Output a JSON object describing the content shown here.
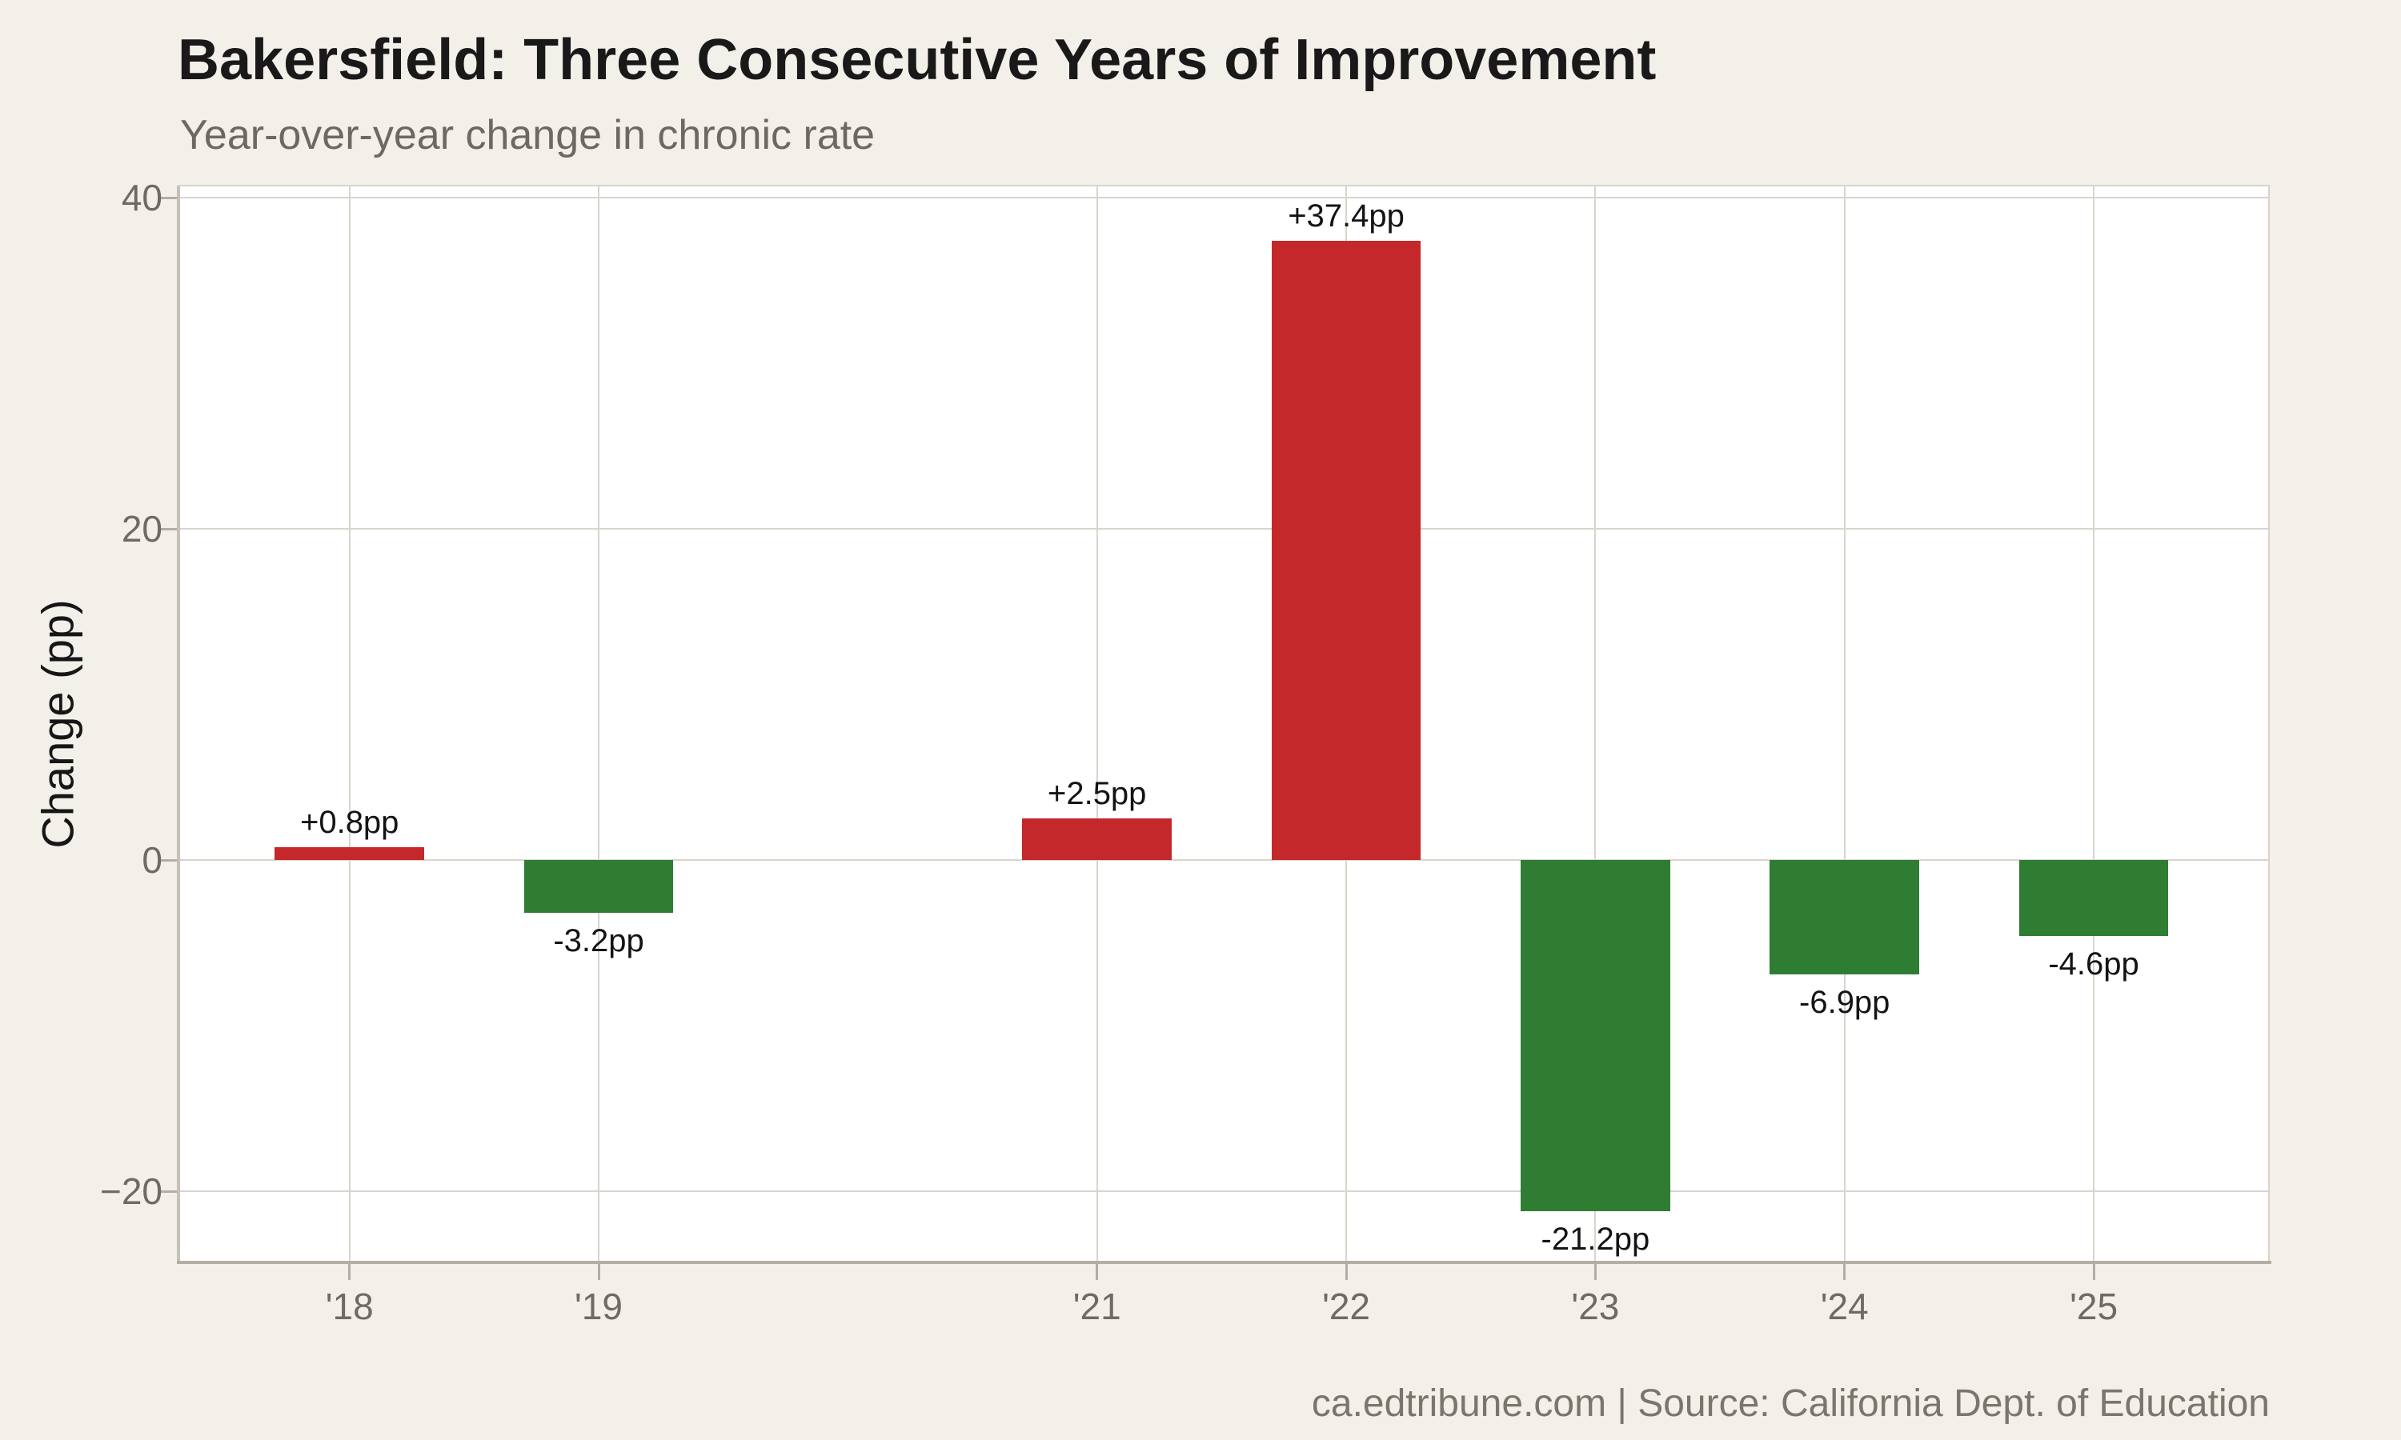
{
  "header": {
    "title": "Bakersfield: Three Consecutive Years of Improvement",
    "subtitle": "Year-over-year change in chronic rate"
  },
  "footer": {
    "attribution": "ca.edtribune.com | Source: California Dept. of Education"
  },
  "chart_data": {
    "type": "bar",
    "title": "Bakersfield: Three Consecutive Years of Improvement",
    "subtitle": "Year-over-year change in chronic rate",
    "xlabel": "",
    "ylabel": "Change (pp)",
    "categories": [
      "'18",
      "'19",
      "'21",
      "'22",
      "'23",
      "'24",
      "'25"
    ],
    "x_years": [
      2018,
      2019,
      2021,
      2022,
      2023,
      2024,
      2025
    ],
    "values": [
      0.8,
      -3.2,
      2.5,
      37.4,
      -21.2,
      -6.9,
      -4.6
    ],
    "bar_labels": [
      "+0.8pp",
      "-3.2pp",
      "+2.5pp",
      "+37.4pp",
      "-21.2pp",
      "-6.9pp",
      "-4.6pp"
    ],
    "ytick_values": [
      40,
      20,
      0,
      -20
    ],
    "ytick_labels": [
      "40",
      "20",
      "0",
      "−20"
    ],
    "ylim": [
      -24.2,
      40.7
    ],
    "xlim": [
      2017.32,
      2025.7
    ],
    "bar_width_x": 0.6,
    "grid": true,
    "legend": "none",
    "colors": {
      "increase": "#c5282b",
      "decrease": "#2e7d32",
      "background": "#f3f0ea",
      "plot_background": "#ffffff"
    }
  }
}
